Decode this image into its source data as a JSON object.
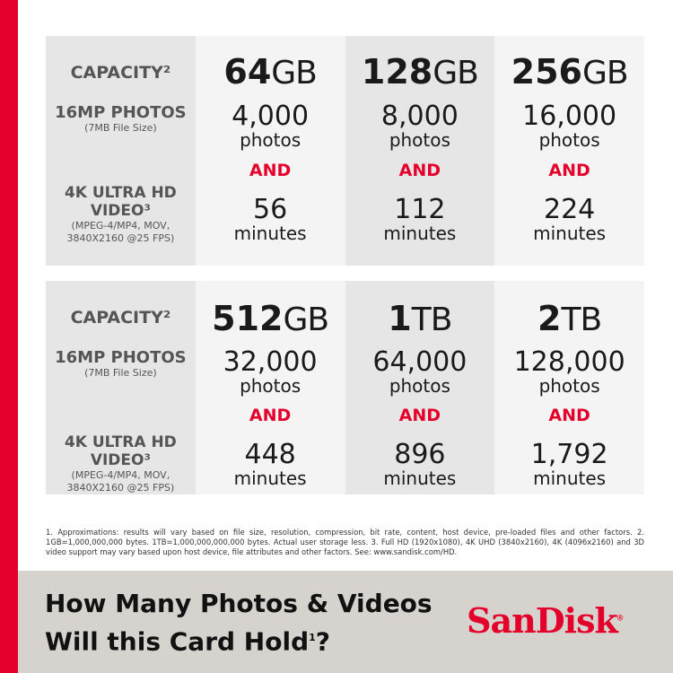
{
  "labels": {
    "capacity": "CAPACITY²",
    "photos_title": "16MP PHOTOS",
    "photos_sub": "(7MB File Size)",
    "video_title": "4K ULTRA HD VIDEO³",
    "video_sub": "(MPEG-4/MP4, MOV, 3840X2160 @25 FPS)",
    "photos_unit": "photos",
    "and": "AND",
    "minutes_unit": "minutes"
  },
  "tables": [
    {
      "cards": [
        {
          "num": "64",
          "unit": "GB",
          "photos": "4,000",
          "minutes": "56"
        },
        {
          "num": "128",
          "unit": "GB",
          "photos": "8,000",
          "minutes": "112"
        },
        {
          "num": "256",
          "unit": "GB",
          "photos": "16,000",
          "minutes": "224"
        }
      ]
    },
    {
      "cards": [
        {
          "num": "512",
          "unit": "GB",
          "photos": "32,000",
          "minutes": "448"
        },
        {
          "num": "1",
          "unit": "TB",
          "photos": "64,000",
          "minutes": "896"
        },
        {
          "num": "2",
          "unit": "TB",
          "photos": "128,000",
          "minutes": "1,792"
        }
      ]
    }
  ],
  "footnote": "1. Approximations: results will vary based on file size, resolution, compression, bit rate, content, host device, pre-loaded files and other factors. 2. 1GB=1,000,000,000 bytes. 1TB=1,000,000,000,000 bytes. Actual user storage less. 3. Full HD (1920x1080), 4K UHD (3840x2160), 4K (4096x2160) and 3D video support may vary based upon host device, file attributes and other factors. See: www.sandisk.com/HD.",
  "headline": {
    "line1": "How Many Photos & Videos",
    "line2": "Will this Card Hold",
    "sup": "1",
    "end": "?"
  },
  "logo": {
    "text": "SanDisk",
    "mark": "®"
  },
  "colors": {
    "brand_red": "#e4002b",
    "band": "#d6d3ce"
  }
}
